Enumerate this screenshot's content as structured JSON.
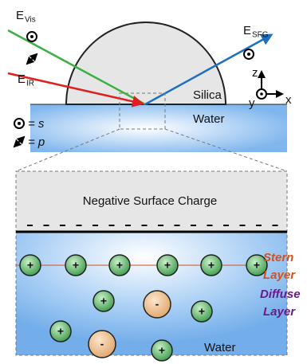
{
  "beams": {
    "visible": {
      "symbol": "E",
      "subscript": "Vis"
    },
    "infrared": {
      "symbol": "E",
      "subscript": "IR"
    },
    "sfg": {
      "symbol": "E",
      "subscript": "SFG"
    }
  },
  "interface": {
    "upper": "Silica",
    "lower": "Water"
  },
  "polarization_legend": [
    {
      "label": "= s"
    },
    {
      "label": "= p"
    }
  ],
  "axes": {
    "z": "z",
    "y": "y",
    "x": "x"
  },
  "zoom": {
    "title": "Negative Surface Charge",
    "stern_layer": [
      "Stern",
      "Layer"
    ],
    "diffuse_layer": [
      "Diffuse",
      "Layer"
    ],
    "medium": "Water",
    "ions": [
      {
        "charge": "+"
      },
      {
        "charge": "+"
      },
      {
        "charge": "+"
      },
      {
        "charge": "+"
      },
      {
        "charge": "+"
      },
      {
        "charge": "+"
      },
      {
        "charge": "+"
      },
      {
        "charge": "-"
      },
      {
        "charge": "+"
      },
      {
        "charge": "+"
      },
      {
        "charge": "-"
      },
      {
        "charge": "+"
      }
    ]
  }
}
